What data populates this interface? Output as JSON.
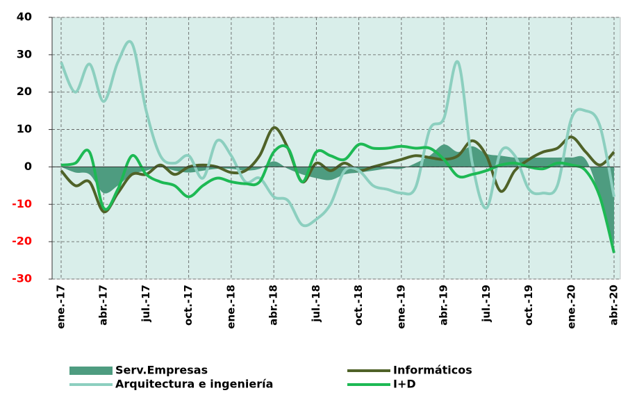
{
  "chart_data": {
    "type": "line",
    "categories": [
      "ene.-17",
      null,
      null,
      "abr.-17",
      null,
      null,
      "jul.-17",
      null,
      null,
      "oct.-17",
      null,
      null,
      "ene.-18",
      null,
      null,
      "abr.-18",
      null,
      null,
      "jul.-18",
      null,
      null,
      "oct.-18",
      null,
      null,
      "ene.-19",
      null,
      null,
      "abr.-19",
      null,
      null,
      "jul.-19",
      null,
      null,
      "oct.-19",
      null,
      null,
      "ene.-20",
      null,
      null,
      "abr.-20"
    ],
    "series": [
      {
        "name": "Serv.Empresas",
        "color": "#4e9c80",
        "style": "area",
        "values": [
          0,
          -1.5,
          -2,
          -7,
          -5,
          -2,
          -1,
          0,
          -1,
          -1.5,
          -1,
          -0.5,
          -0.5,
          -1,
          -0.5,
          1.5,
          -0.5,
          -2,
          -3,
          -3.5,
          -2,
          -1.5,
          -1,
          -0.5,
          -0.5,
          1,
          3,
          6,
          4,
          5.5,
          3.5,
          3,
          2.5,
          2.5,
          2.5,
          2.5,
          2.5,
          2,
          -8,
          -21
        ]
      },
      {
        "name": "Informáticos",
        "color": "#4f6228",
        "style": "line",
        "values": [
          -1,
          -5,
          -4,
          -12,
          -7,
          -2,
          -2,
          0.5,
          -2,
          0,
          0.5,
          0,
          -1.5,
          -1,
          3,
          10.5,
          5,
          -4,
          1,
          -1,
          1,
          -1,
          0,
          1,
          2,
          3,
          2.5,
          2,
          3,
          7,
          3,
          -6.5,
          -1,
          2,
          4,
          5,
          8,
          4,
          0.5,
          4
        ]
      },
      {
        "name": "Arquitectura e ingeniería",
        "color": "#8ccfbf",
        "style": "line",
        "values": [
          28,
          20,
          27.5,
          17.5,
          28,
          33,
          15,
          3,
          1,
          3,
          -3,
          7,
          3,
          -4,
          -3,
          -8,
          -9,
          -15.5,
          -14,
          -10,
          -1,
          -1,
          -5,
          -6,
          -7,
          -5.5,
          10,
          13,
          28,
          1,
          -11,
          4,
          3,
          -6,
          -7,
          -5,
          13,
          15,
          11,
          -8
        ]
      },
      {
        "name": "I+D",
        "color": "#1db954",
        "style": "line",
        "values": [
          0.5,
          1,
          4,
          -11,
          -6,
          3,
          -2,
          -4,
          -5,
          -8,
          -5,
          -3,
          -4,
          -4.5,
          -4,
          4,
          5,
          -4,
          4,
          3,
          2,
          6,
          5,
          5,
          5.5,
          5,
          5,
          2,
          -2.5,
          -2,
          -1,
          0.5,
          1,
          0,
          -0.5,
          1,
          0.5,
          -1,
          -8,
          -23
        ]
      }
    ],
    "ylim": [
      -30,
      40
    ],
    "yticks": [
      -30,
      -20,
      -10,
      0,
      10,
      20,
      30,
      40
    ],
    "negative_tick_color": "#ff0000",
    "grid": true,
    "legend": "bottom"
  }
}
